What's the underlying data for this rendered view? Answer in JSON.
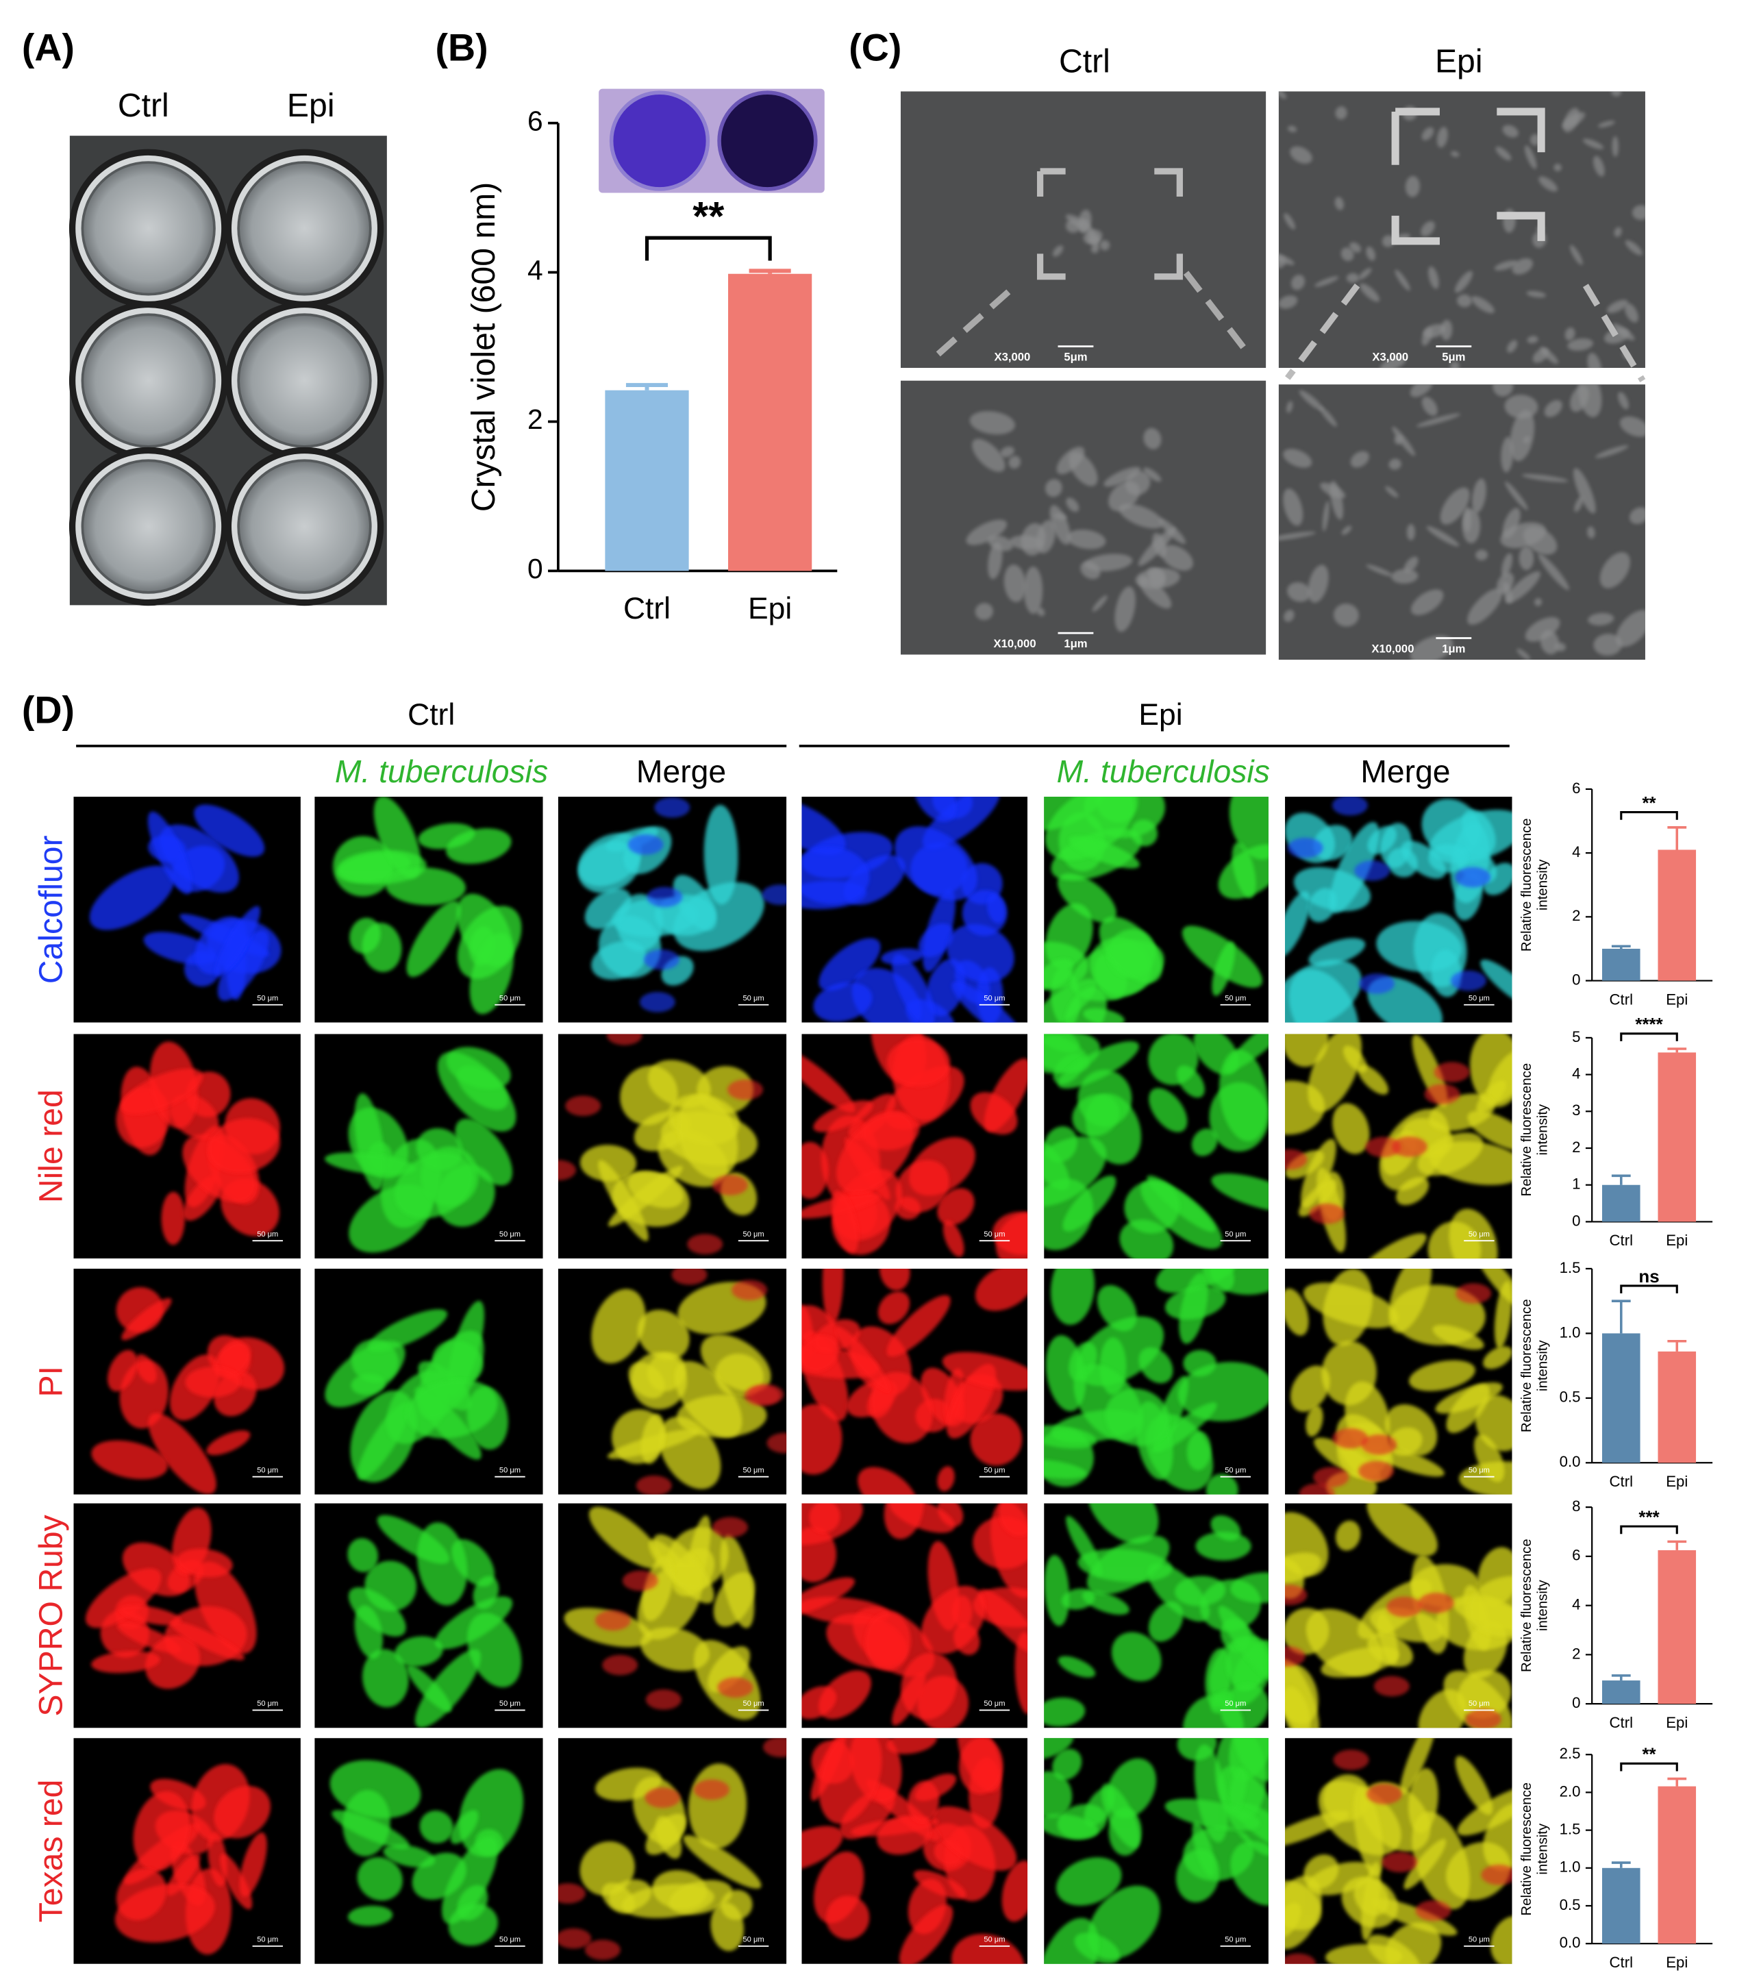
{
  "panel_labels": [
    "(A)",
    "(B)",
    "(C)",
    "(D)"
  ],
  "panel_a": {
    "columns": [
      "Ctrl",
      "Epi"
    ]
  },
  "panel_c": {
    "columns": [
      "Ctrl",
      "Epi"
    ],
    "images": [
      {
        "magnification": "X3,000",
        "scale_bar": "5μm"
      },
      {
        "magnification": "X3,000",
        "scale_bar": "5μm"
      },
      {
        "magnification": "X10,000",
        "scale_bar": "1μm"
      },
      {
        "magnification": "X10,000",
        "scale_bar": "1μm"
      }
    ]
  },
  "panel_d": {
    "groups": [
      {
        "name": "Ctrl",
        "channels": [
          "M. tuberculosis",
          "Merge"
        ]
      },
      {
        "name": "Epi",
        "channels": [
          "M. tuberculosis",
          "Merge"
        ]
      }
    ],
    "stains": [
      "Calcofluor",
      "Nile red",
      "PI",
      "SYPRO Ruby",
      "Texas red"
    ],
    "stain_colors": [
      "#1f3cf5",
      "#e8262a",
      "#e8262a",
      "#e8262a",
      "#e8262a"
    ],
    "scale_bar": "50 μm"
  },
  "chart_data": [
    {
      "type": "bar",
      "ylabel": "Crystal violet (600 nm)",
      "categories": [
        "Ctrl",
        "Epi"
      ],
      "values": [
        2.42,
        3.98
      ],
      "errors": [
        0.07,
        0.04
      ],
      "colors": [
        "#8fbde3",
        "#f07a72"
      ],
      "ylim": [
        0,
        6
      ],
      "yticks": [
        0,
        2,
        4,
        6
      ],
      "significance": "**"
    },
    {
      "type": "bar",
      "ylabel_lines": [
        "Relative fluorescence",
        "intensity"
      ],
      "categories": [
        "Ctrl",
        "Epi"
      ],
      "values": [
        1.0,
        4.1
      ],
      "errors": [
        0.08,
        0.7
      ],
      "colors": [
        "#5b88ad",
        "#f07a72"
      ],
      "ylim": [
        0,
        6
      ],
      "yticks": [
        0,
        2,
        4,
        6
      ],
      "significance": "**"
    },
    {
      "type": "bar",
      "ylabel_lines": [
        "Relative fluorescence",
        "intensity"
      ],
      "categories": [
        "Ctrl",
        "Epi"
      ],
      "values": [
        1.0,
        4.6
      ],
      "errors": [
        0.25,
        0.1
      ],
      "colors": [
        "#5b88ad",
        "#f07a72"
      ],
      "ylim": [
        0,
        5
      ],
      "yticks": [
        0,
        1,
        2,
        3,
        4,
        5
      ],
      "significance": "****"
    },
    {
      "type": "bar",
      "ylabel_lines": [
        "Relative fluorescence",
        "intensity"
      ],
      "categories": [
        "Ctrl",
        "Epi"
      ],
      "values": [
        1.0,
        0.86
      ],
      "errors": [
        0.25,
        0.08
      ],
      "colors": [
        "#5b88ad",
        "#f07a72"
      ],
      "ylim": [
        0,
        1.5
      ],
      "yticks": [
        {
          "value": 0,
          "label": "0.0"
        },
        {
          "value": 0.5,
          "label": "0.5"
        },
        {
          "value": 1,
          "label": "1.0"
        },
        {
          "value": 1.5,
          "label": "1.5"
        }
      ],
      "significance": "ns"
    },
    {
      "type": "bar",
      "ylabel_lines": [
        "Relative fluorescence",
        "intensity"
      ],
      "categories": [
        "Ctrl",
        "Epi"
      ],
      "values": [
        0.95,
        6.25
      ],
      "errors": [
        0.2,
        0.35
      ],
      "colors": [
        "#5b88ad",
        "#f07a72"
      ],
      "ylim": [
        0,
        8
      ],
      "yticks": [
        0,
        2,
        4,
        6,
        8
      ],
      "significance": "***"
    },
    {
      "type": "bar",
      "ylabel_lines": [
        "Relative fluorescence",
        "intensity"
      ],
      "categories": [
        "Ctrl",
        "Epi"
      ],
      "values": [
        1.0,
        2.08
      ],
      "errors": [
        0.07,
        0.1
      ],
      "colors": [
        "#5b88ad",
        "#f07a72"
      ],
      "ylim": [
        0,
        2.5
      ],
      "yticks": [
        {
          "value": 0,
          "label": "0.0"
        },
        {
          "value": 0.5,
          "label": "0.5"
        },
        {
          "value": 1,
          "label": "1.0"
        },
        {
          "value": 1.5,
          "label": "1.5"
        },
        {
          "value": 2,
          "label": "2.0"
        },
        {
          "value": 2.5,
          "label": "2.5"
        }
      ],
      "significance": "**"
    }
  ]
}
